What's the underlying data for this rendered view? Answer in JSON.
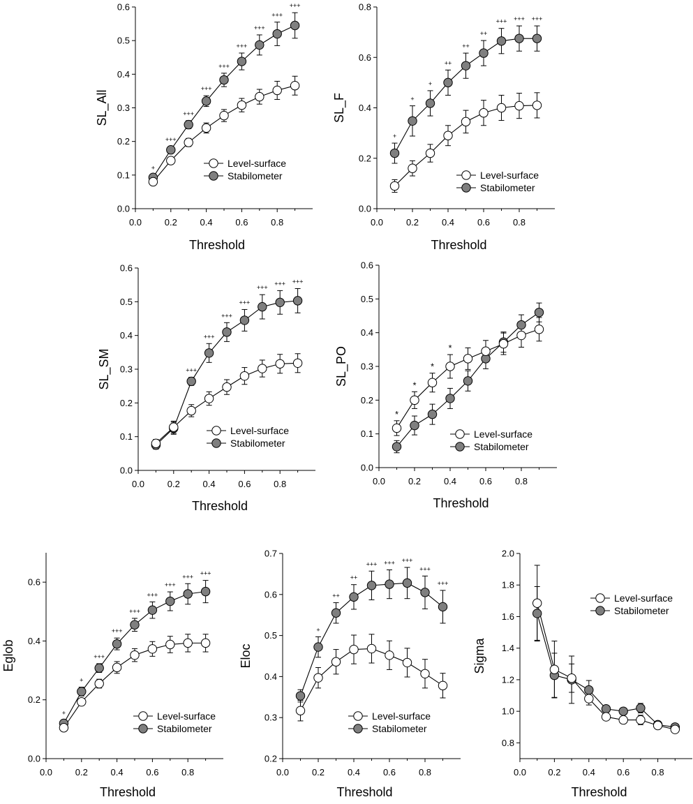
{
  "chart_data": [
    {
      "id": "sl_all",
      "type": "line",
      "ylabel": "SL_All",
      "xlabel": "Threshold",
      "xlim": [
        0,
        1
      ],
      "ylim": [
        0,
        0.6
      ],
      "xticks": [
        "0.0",
        "0.2",
        "0.4",
        "0.6",
        "0.8"
      ],
      "yticks": [
        "0.0",
        "0.1",
        "0.2",
        "0.3",
        "0.4",
        "0.5",
        "0.6"
      ],
      "legend_position": "bottom-right",
      "x": [
        0.1,
        0.2,
        0.3,
        0.4,
        0.5,
        0.6,
        0.7,
        0.8,
        0.9
      ],
      "series": [
        {
          "name": "Level-surface",
          "fill": "#ffffff",
          "values": [
            0.08,
            0.143,
            0.197,
            0.24,
            0.277,
            0.308,
            0.333,
            0.352,
            0.366
          ],
          "err": [
            0.005,
            0.01,
            0.012,
            0.015,
            0.018,
            0.02,
            0.022,
            0.027,
            0.028
          ]
        },
        {
          "name": "Stabilometer",
          "fill": "#7f7f7f",
          "values": [
            0.093,
            0.175,
            0.25,
            0.32,
            0.383,
            0.438,
            0.487,
            0.52,
            0.545
          ],
          "err": [
            0.008,
            0.01,
            0.012,
            0.016,
            0.02,
            0.025,
            0.03,
            0.035,
            0.038
          ]
        }
      ],
      "annotations": [
        "+",
        "+++",
        "+++",
        "+++",
        "+++",
        "+++",
        "+++",
        "+++",
        "+++"
      ]
    },
    {
      "id": "sl_f",
      "type": "line",
      "ylabel": "SL_F",
      "xlabel": "Threshold",
      "xlim": [
        0,
        1
      ],
      "ylim": [
        0,
        0.8
      ],
      "xticks": [
        "0.0",
        "0.2",
        "0.4",
        "0.6",
        "0.8"
      ],
      "yticks": [
        "0.0",
        "0.2",
        "0.4",
        "0.6",
        "0.8"
      ],
      "legend_position": "bottom-right",
      "x": [
        0.1,
        0.2,
        0.3,
        0.4,
        0.5,
        0.6,
        0.7,
        0.8,
        0.9
      ],
      "series": [
        {
          "name": "Level-surface",
          "fill": "#ffffff",
          "values": [
            0.09,
            0.16,
            0.22,
            0.29,
            0.345,
            0.38,
            0.4,
            0.408,
            0.41
          ],
          "err": [
            0.025,
            0.03,
            0.035,
            0.04,
            0.045,
            0.05,
            0.05,
            0.05,
            0.05
          ]
        },
        {
          "name": "Stabilometer",
          "fill": "#7f7f7f",
          "values": [
            0.22,
            0.348,
            0.418,
            0.5,
            0.567,
            0.617,
            0.665,
            0.675,
            0.675
          ],
          "err": [
            0.04,
            0.06,
            0.05,
            0.05,
            0.05,
            0.05,
            0.05,
            0.05,
            0.05
          ]
        }
      ],
      "annotations": [
        "+",
        "+",
        "+",
        "++",
        "++",
        "++",
        "+++",
        "+++",
        "+++"
      ]
    },
    {
      "id": "sl_sm",
      "type": "line",
      "ylabel": "SL_SM",
      "xlabel": "Threshold",
      "xlim": [
        0,
        1
      ],
      "ylim": [
        0,
        0.6
      ],
      "xticks": [
        "0.0",
        "0.2",
        "0.4",
        "0.6",
        "0.8"
      ],
      "yticks": [
        "0.0",
        "0.1",
        "0.2",
        "0.3",
        "0.4",
        "0.5",
        "0.6"
      ],
      "legend_position": "bottom-right",
      "x": [
        0.1,
        0.2,
        0.3,
        0.4,
        0.5,
        0.6,
        0.7,
        0.8,
        0.9
      ],
      "series": [
        {
          "name": "Level-surface",
          "fill": "#ffffff",
          "values": [
            0.08,
            0.128,
            0.177,
            0.213,
            0.247,
            0.28,
            0.302,
            0.316,
            0.318
          ],
          "err": [
            0.012,
            0.018,
            0.018,
            0.02,
            0.022,
            0.025,
            0.025,
            0.028,
            0.028
          ]
        },
        {
          "name": "Stabilometer",
          "fill": "#7f7f7f",
          "values": [
            0.075,
            0.125,
            0.264,
            0.348,
            0.41,
            0.445,
            0.485,
            0.498,
            0.503
          ],
          "err": [
            0.012,
            0.018,
            0.012,
            0.028,
            0.028,
            0.032,
            0.036,
            0.035,
            0.036
          ]
        }
      ],
      "annotations": [
        "",
        "",
        "+++",
        "+++",
        "+++",
        "+++",
        "+++",
        "+++",
        "+++"
      ]
    },
    {
      "id": "sl_po",
      "type": "line",
      "ylabel": "SL_PO",
      "xlabel": "Threshold",
      "xlim": [
        0,
        1
      ],
      "ylim": [
        0,
        0.6
      ],
      "xticks": [
        "0.0",
        "0.2",
        "0.4",
        "0.6",
        "0.8"
      ],
      "yticks": [
        "0.0",
        "0.1",
        "0.2",
        "0.3",
        "0.4",
        "0.5",
        "0.6"
      ],
      "legend_position": "bottom-right",
      "x": [
        0.1,
        0.2,
        0.3,
        0.4,
        0.5,
        0.6,
        0.7,
        0.8,
        0.9
      ],
      "series": [
        {
          "name": "Level-surface",
          "fill": "#ffffff",
          "values": [
            0.117,
            0.2,
            0.252,
            0.3,
            0.323,
            0.345,
            0.367,
            0.392,
            0.41
          ],
          "err": [
            0.022,
            0.025,
            0.028,
            0.035,
            0.032,
            0.032,
            0.032,
            0.035,
            0.035
          ]
        },
        {
          "name": "Stabilometer",
          "fill": "#7f7f7f",
          "values": [
            0.062,
            0.125,
            0.158,
            0.205,
            0.257,
            0.323,
            0.372,
            0.423,
            0.46
          ],
          "err": [
            0.018,
            0.028,
            0.03,
            0.03,
            0.03,
            0.03,
            0.03,
            0.03,
            0.028
          ]
        }
      ],
      "annotations": [
        "*",
        "*",
        "*",
        "*",
        "",
        "",
        "",
        "",
        ""
      ]
    },
    {
      "id": "eglob",
      "type": "line",
      "ylabel": "Eglob",
      "xlabel": "Threshold",
      "xlim": [
        0,
        1
      ],
      "ylim": [
        0,
        0.7
      ],
      "xticks": [
        "0.0",
        "0.2",
        "0.4",
        "0.6",
        "0.8"
      ],
      "yticks": [
        "0.0",
        "0.2",
        "0.4",
        "0.6"
      ],
      "legend_position": "bottom-right",
      "x": [
        0.1,
        0.2,
        0.3,
        0.4,
        0.5,
        0.6,
        0.7,
        0.8,
        0.9
      ],
      "series": [
        {
          "name": "Level-surface",
          "fill": "#ffffff",
          "values": [
            0.105,
            0.193,
            0.255,
            0.31,
            0.352,
            0.373,
            0.388,
            0.393,
            0.393
          ],
          "err": [
            0.01,
            0.012,
            0.015,
            0.02,
            0.022,
            0.025,
            0.028,
            0.03,
            0.03
          ]
        },
        {
          "name": "Stabilometer",
          "fill": "#7f7f7f",
          "values": [
            0.12,
            0.228,
            0.308,
            0.39,
            0.455,
            0.505,
            0.535,
            0.56,
            0.568
          ],
          "err": [
            0.012,
            0.015,
            0.015,
            0.02,
            0.022,
            0.028,
            0.032,
            0.035,
            0.038
          ]
        }
      ],
      "annotations": [
        "+",
        "+",
        "+++",
        "+++",
        "+++",
        "+++",
        "+++",
        "+++",
        "+++"
      ]
    },
    {
      "id": "eloc",
      "type": "line",
      "ylabel": "Eloc",
      "xlabel": "Threshold",
      "xlim": [
        0,
        1
      ],
      "ylim": [
        0.2,
        0.7
      ],
      "xticks": [
        "0.0",
        "0.2",
        "0.4",
        "0.6",
        "0.8"
      ],
      "yticks": [
        "0.2",
        "0.3",
        "0.4",
        "0.5",
        "0.6",
        "0.7"
      ],
      "legend_position": "bottom-right",
      "x": [
        0.1,
        0.2,
        0.3,
        0.4,
        0.5,
        0.6,
        0.7,
        0.8,
        0.9
      ],
      "series": [
        {
          "name": "Level-surface",
          "fill": "#ffffff",
          "values": [
            0.317,
            0.397,
            0.436,
            0.466,
            0.468,
            0.452,
            0.434,
            0.407,
            0.378
          ],
          "err": [
            0.025,
            0.025,
            0.03,
            0.035,
            0.035,
            0.035,
            0.035,
            0.035,
            0.03
          ]
        },
        {
          "name": "Stabilometer",
          "fill": "#7f7f7f",
          "values": [
            0.353,
            0.472,
            0.555,
            0.594,
            0.622,
            0.625,
            0.628,
            0.605,
            0.57
          ],
          "err": [
            0.015,
            0.025,
            0.025,
            0.03,
            0.035,
            0.035,
            0.038,
            0.04,
            0.04
          ]
        }
      ],
      "annotations": [
        "",
        "+",
        "++",
        "++",
        "+++",
        "+++",
        "+++",
        "+++",
        "+++"
      ]
    },
    {
      "id": "sigma",
      "type": "line",
      "ylabel": "Sigma",
      "xlabel": "Threshold",
      "xlim": [
        0,
        1
      ],
      "ylim": [
        0.7,
        2.0
      ],
      "xticks": [
        "0.0",
        "0.2",
        "0.4",
        "0.6",
        "0.8"
      ],
      "yticks": [
        "0.8",
        "1.0",
        "1.2",
        "1.4",
        "1.6",
        "1.8",
        "2.0"
      ],
      "legend_position": "top-right",
      "x": [
        0.1,
        0.2,
        0.3,
        0.4,
        0.5,
        0.6,
        0.7,
        0.8,
        0.9
      ],
      "series": [
        {
          "name": "Level-surface",
          "fill": "#ffffff",
          "values": [
            1.685,
            1.265,
            1.21,
            1.08,
            0.965,
            0.945,
            0.945,
            0.91,
            0.885
          ],
          "err": [
            0.24,
            0.18,
            0.09,
            0.04,
            0.02,
            0.02,
            0.03,
            0.015,
            0.015
          ]
        },
        {
          "name": "Stabilometer",
          "fill": "#7f7f7f",
          "values": [
            1.62,
            1.228,
            1.2,
            1.135,
            1.015,
            1.0,
            1.02,
            0.915,
            0.9
          ],
          "err": [
            0.17,
            0.14,
            0.15,
            0.06,
            0.02,
            0.02,
            0.03,
            0.02,
            0.015
          ]
        }
      ],
      "annotations": [
        "",
        "",
        "",
        "",
        "",
        "",
        "",
        "",
        ""
      ]
    }
  ]
}
